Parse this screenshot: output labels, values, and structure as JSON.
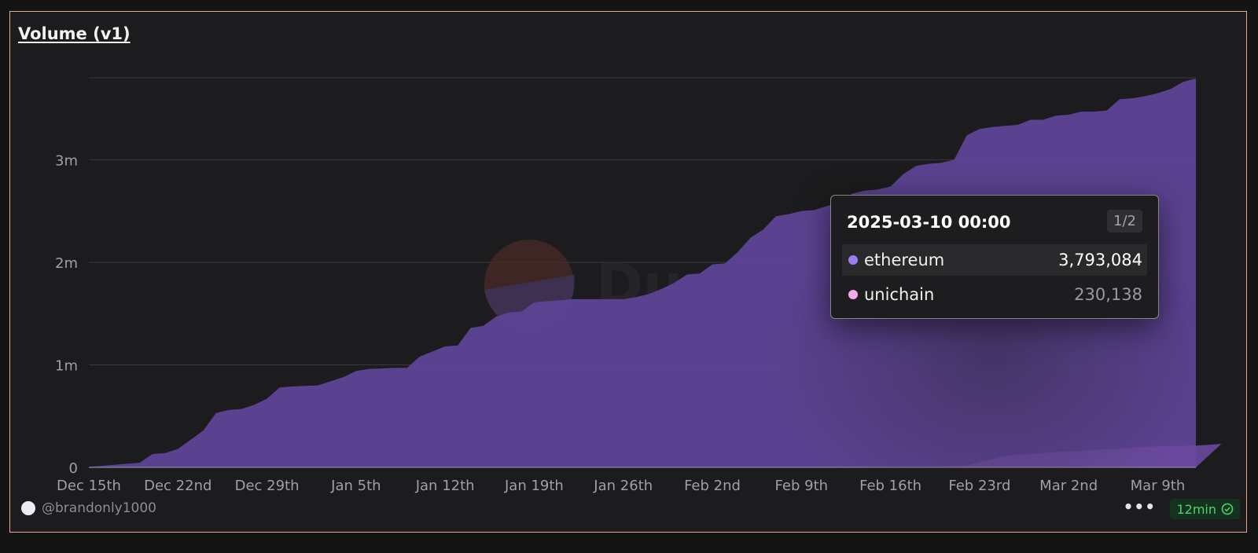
{
  "header": {
    "title": "Volume (v1)"
  },
  "watermark": {
    "text": "Dune"
  },
  "tooltip": {
    "title": "2025-03-10 00:00",
    "page": "1/2",
    "rows": [
      {
        "name": "ethereum",
        "value": "3,793,084",
        "color": "#9d7bf3"
      },
      {
        "name": "unichain",
        "value": "230,138",
        "color": "#f4a9e9"
      }
    ]
  },
  "footer": {
    "username": "@brandonly1000",
    "refresh": "12min"
  },
  "colors": {
    "ethereum": "#5d4393",
    "unichain": "#6a4a9e",
    "accent_border": "#e8a68f"
  },
  "chart_data": {
    "type": "area",
    "stacked": false,
    "ylim": [
      0,
      3800000
    ],
    "yticks": [
      0,
      1000000,
      2000000,
      3000000
    ],
    "ytick_labels": [
      "0",
      "1m",
      "2m",
      "3m"
    ],
    "xtick_labels": [
      "Dec 15th",
      "Dec 22nd",
      "Dec 29th",
      "Jan 5th",
      "Jan 12th",
      "Jan 19th",
      "Jan 26th",
      "Feb 2nd",
      "Feb 9th",
      "Feb 16th",
      "Feb 23rd",
      "Mar 2nd",
      "Mar 9th"
    ],
    "x_start": "2024-12-15",
    "x_end": "2025-03-10",
    "series": [
      {
        "name": "ethereum",
        "values": [
          5000,
          15000,
          25000,
          35000,
          45000,
          130000,
          140000,
          180000,
          270000,
          360000,
          530000,
          560000,
          570000,
          610000,
          670000,
          780000,
          790000,
          795000,
          800000,
          840000,
          880000,
          940000,
          960000,
          965000,
          970000,
          970000,
          1080000,
          1130000,
          1180000,
          1190000,
          1360000,
          1380000,
          1470000,
          1510000,
          1520000,
          1610000,
          1620000,
          1630000,
          1640000,
          1640000,
          1640000,
          1640000,
          1640000,
          1660000,
          1690000,
          1740000,
          1800000,
          1880000,
          1890000,
          1980000,
          1990000,
          2100000,
          2240000,
          2320000,
          2450000,
          2470000,
          2500000,
          2510000,
          2550000,
          2580000,
          2670000,
          2700000,
          2710000,
          2740000,
          2860000,
          2940000,
          2960000,
          2970000,
          3000000,
          3240000,
          3300000,
          3320000,
          3330000,
          3340000,
          3390000,
          3390000,
          3430000,
          3440000,
          3470000,
          3470000,
          3480000,
          3590000,
          3600000,
          3620000,
          3650000,
          3690000,
          3760000,
          3793084
        ]
      },
      {
        "name": "unichain",
        "values": [
          0,
          0,
          0,
          0,
          0,
          0,
          0,
          0,
          0,
          0,
          0,
          0,
          0,
          0,
          0,
          0,
          0,
          0,
          0,
          0,
          0,
          0,
          0,
          0,
          0,
          0,
          0,
          0,
          0,
          0,
          0,
          0,
          0,
          0,
          0,
          0,
          0,
          0,
          0,
          0,
          0,
          0,
          0,
          0,
          0,
          0,
          0,
          0,
          0,
          0,
          0,
          0,
          0,
          0,
          0,
          0,
          0,
          0,
          0,
          0,
          0,
          0,
          0,
          0,
          0,
          0,
          5000,
          10000,
          15000,
          20000,
          50000,
          80000,
          110000,
          125000,
          130000,
          140000,
          150000,
          155000,
          160000,
          170000,
          175000,
          180000,
          190000,
          200000,
          205000,
          208000,
          210000,
          212000,
          220000,
          230138
        ]
      }
    ]
  }
}
